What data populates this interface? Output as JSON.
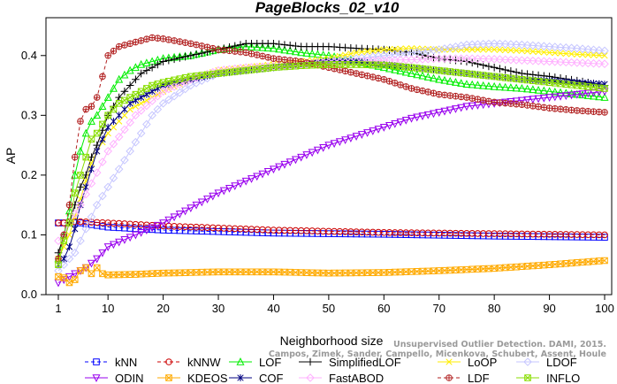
{
  "chart_data": {
    "type": "line",
    "title": "PageBlocks_02_v10",
    "xlabel": "Neighborhood size",
    "ylabel": "AP",
    "xlim": [
      1,
      100
    ],
    "ylim": [
      0,
      0.45
    ],
    "x_ticks": [
      "1",
      "10",
      "20",
      "30",
      "40",
      "50",
      "60",
      "70",
      "80",
      "90",
      "100"
    ],
    "y_ticks": [
      "0.0",
      "0.1",
      "0.2",
      "0.3",
      "0.4"
    ],
    "legend_position": "bottom",
    "series": [
      {
        "name": "kNN",
        "color": "#0000ff",
        "marker": "square",
        "dashed": true,
        "x": [
          1,
          2,
          3,
          5,
          10,
          20,
          40,
          60,
          80,
          100
        ],
        "y": [
          0.12,
          0.12,
          0.12,
          0.12,
          0.113,
          0.108,
          0.103,
          0.101,
          0.098,
          0.096
        ]
      },
      {
        "name": "kNNW",
        "color": "#cc0000",
        "marker": "circle",
        "dashed": true,
        "x": [
          1,
          2,
          3,
          5,
          10,
          20,
          40,
          60,
          80,
          100
        ],
        "y": [
          0.12,
          0.12,
          0.122,
          0.122,
          0.12,
          0.115,
          0.108,
          0.104,
          0.102,
          0.1
        ]
      },
      {
        "name": "LOF",
        "color": "#00ee00",
        "marker": "triangle",
        "dashed": false,
        "x": [
          1,
          2,
          3,
          4,
          5,
          6,
          7,
          8,
          10,
          12,
          14,
          16,
          18,
          20,
          25,
          30,
          35,
          40,
          45,
          50,
          55,
          60,
          65,
          70,
          75,
          80,
          85,
          90,
          95,
          100
        ],
        "y": [
          0.06,
          0.1,
          0.14,
          0.2,
          0.24,
          0.27,
          0.29,
          0.3,
          0.33,
          0.36,
          0.375,
          0.385,
          0.39,
          0.395,
          0.4,
          0.41,
          0.415,
          0.412,
          0.405,
          0.4,
          0.39,
          0.38,
          0.37,
          0.36,
          0.352,
          0.348,
          0.345,
          0.34,
          0.335,
          0.33
        ]
      },
      {
        "name": "SimplifiedLOF",
        "color": "#000000",
        "marker": "plus",
        "dashed": false,
        "x": [
          1,
          2,
          3,
          4,
          5,
          6,
          7,
          8,
          10,
          12,
          14,
          16,
          18,
          20,
          25,
          30,
          35,
          40,
          45,
          50,
          55,
          60,
          65,
          70,
          75,
          80,
          85,
          90,
          95,
          100
        ],
        "y": [
          0.07,
          0.1,
          0.12,
          0.15,
          0.18,
          0.2,
          0.23,
          0.25,
          0.3,
          0.33,
          0.35,
          0.37,
          0.38,
          0.39,
          0.4,
          0.41,
          0.42,
          0.42,
          0.415,
          0.415,
          0.412,
          0.41,
          0.405,
          0.395,
          0.39,
          0.38,
          0.37,
          0.365,
          0.358,
          0.35
        ]
      },
      {
        "name": "LoOP",
        "color": "#ffee00",
        "marker": "x",
        "dashed": false,
        "x": [
          1,
          2,
          3,
          4,
          5,
          6,
          7,
          8,
          10,
          12,
          14,
          16,
          18,
          20,
          25,
          30,
          35,
          40,
          45,
          50,
          55,
          60,
          65,
          70,
          75,
          80,
          85,
          90,
          95,
          100
        ],
        "y": [
          0.06,
          0.08,
          0.1,
          0.13,
          0.16,
          0.19,
          0.22,
          0.24,
          0.27,
          0.29,
          0.31,
          0.32,
          0.33,
          0.34,
          0.36,
          0.375,
          0.38,
          0.385,
          0.39,
          0.395,
          0.405,
          0.41,
          0.412,
          0.41,
          0.41,
          0.41,
          0.408,
          0.405,
          0.402,
          0.4
        ]
      },
      {
        "name": "LDOF",
        "color": "#c6c6ff",
        "marker": "diamond",
        "dashed": false,
        "x": [
          1,
          2,
          3,
          4,
          5,
          6,
          7,
          8,
          10,
          12,
          14,
          16,
          18,
          20,
          25,
          30,
          35,
          40,
          45,
          50,
          55,
          60,
          65,
          70,
          75,
          80,
          85,
          90,
          95,
          100
        ],
        "y": [
          0.04,
          0.05,
          0.06,
          0.07,
          0.09,
          0.11,
          0.13,
          0.15,
          0.18,
          0.21,
          0.24,
          0.27,
          0.3,
          0.32,
          0.35,
          0.37,
          0.375,
          0.38,
          0.385,
          0.39,
          0.395,
          0.4,
          0.405,
          0.41,
          0.418,
          0.42,
          0.418,
          0.415,
          0.412,
          0.408
        ]
      },
      {
        "name": "ODIN",
        "color": "#9900ee",
        "marker": "triangle-down",
        "dashed": false,
        "x": [
          1,
          2,
          3,
          4,
          5,
          6,
          8,
          10,
          15,
          20,
          25,
          30,
          35,
          40,
          45,
          50,
          55,
          60,
          65,
          70,
          75,
          80,
          85,
          90,
          95,
          100
        ],
        "y": [
          0.02,
          0.025,
          0.03,
          0.035,
          0.04,
          0.045,
          0.06,
          0.08,
          0.1,
          0.12,
          0.145,
          0.17,
          0.19,
          0.21,
          0.23,
          0.25,
          0.265,
          0.28,
          0.295,
          0.305,
          0.315,
          0.32,
          0.325,
          0.33,
          0.335,
          0.34
        ]
      },
      {
        "name": "KDEOS",
        "color": "#ffaa00",
        "marker": "square-x",
        "dashed": false,
        "x": [
          1,
          2,
          3,
          4,
          5,
          6,
          7,
          8,
          9,
          10,
          15,
          20,
          30,
          40,
          50,
          60,
          70,
          80,
          90,
          100
        ],
        "y": [
          0.03,
          0.028,
          0.02,
          0.025,
          0.04,
          0.045,
          0.035,
          0.045,
          0.035,
          0.033,
          0.034,
          0.036,
          0.038,
          0.038,
          0.036,
          0.037,
          0.04,
          0.044,
          0.05,
          0.057
        ]
      },
      {
        "name": "COF",
        "color": "#000080",
        "marker": "asterisk",
        "dashed": false,
        "x": [
          1,
          2,
          3,
          4,
          5,
          6,
          7,
          8,
          10,
          12,
          14,
          16,
          18,
          20,
          25,
          30,
          35,
          40,
          45,
          50,
          55,
          60,
          65,
          70,
          75,
          80,
          85,
          90,
          95,
          100
        ],
        "y": [
          0.05,
          0.06,
          0.08,
          0.11,
          0.15,
          0.18,
          0.21,
          0.24,
          0.28,
          0.3,
          0.32,
          0.33,
          0.34,
          0.35,
          0.36,
          0.37,
          0.375,
          0.38,
          0.385,
          0.39,
          0.39,
          0.385,
          0.38,
          0.375,
          0.37,
          0.365,
          0.36,
          0.358,
          0.355,
          0.352
        ]
      },
      {
        "name": "FastABOD",
        "color": "#ffb0ff",
        "marker": "diamond",
        "dashed": false,
        "x": [
          1,
          2,
          3,
          5,
          10,
          15,
          20,
          25,
          30,
          35,
          40,
          45,
          50,
          55,
          60,
          65,
          70,
          75,
          80,
          85,
          90,
          95,
          100
        ],
        "y": [
          0.09,
          0.1,
          0.12,
          0.15,
          0.24,
          0.3,
          0.34,
          0.36,
          0.375,
          0.38,
          0.382,
          0.385,
          0.388,
          0.39,
          0.392,
          0.393,
          0.395,
          0.395,
          0.394,
          0.392,
          0.39,
          0.388,
          0.386
        ]
      },
      {
        "name": "LDF",
        "color": "#b22222",
        "marker": "circle-plus",
        "dashed": true,
        "x": [
          1,
          2,
          3,
          4,
          5,
          6,
          7,
          8,
          10,
          12,
          14,
          16,
          18,
          20,
          22,
          25,
          30,
          35,
          40,
          45,
          50,
          55,
          60,
          65,
          70,
          75,
          80,
          85,
          90,
          95,
          100
        ],
        "y": [
          0.06,
          0.1,
          0.15,
          0.23,
          0.29,
          0.31,
          0.315,
          0.33,
          0.4,
          0.415,
          0.42,
          0.425,
          0.43,
          0.428,
          0.425,
          0.42,
          0.41,
          0.405,
          0.395,
          0.39,
          0.38,
          0.37,
          0.36,
          0.345,
          0.335,
          0.33,
          0.322,
          0.318,
          0.312,
          0.308,
          0.305
        ]
      },
      {
        "name": "INFLO",
        "color": "#88dd00",
        "marker": "square-x",
        "dashed": false,
        "x": [
          1,
          2,
          3,
          4,
          5,
          6,
          7,
          8,
          10,
          12,
          14,
          16,
          18,
          20,
          25,
          30,
          35,
          40,
          45,
          50,
          55,
          60,
          65,
          70,
          75,
          80,
          85,
          90,
          95,
          100
        ],
        "y": [
          0.05,
          0.09,
          0.12,
          0.17,
          0.2,
          0.23,
          0.26,
          0.27,
          0.3,
          0.32,
          0.33,
          0.34,
          0.35,
          0.355,
          0.365,
          0.37,
          0.375,
          0.38,
          0.383,
          0.385,
          0.385,
          0.384,
          0.38,
          0.375,
          0.37,
          0.365,
          0.36,
          0.355,
          0.35,
          0.345
        ]
      }
    ],
    "legend_rows": [
      [
        "kNN",
        "kNNW",
        "LOF",
        "SimplifiedLOF",
        "LoOP",
        "LDOF"
      ],
      [
        "ODIN",
        "KDEOS",
        "COF",
        "FastABOD",
        "LDF",
        "INFLO"
      ]
    ],
    "watermark": [
      "Unsupervised Outlier Detection. DAMI, 2015.",
      "Campos, Zimek, Sander, Campello, Micenkova, Schubert, Assent, Houle"
    ]
  }
}
